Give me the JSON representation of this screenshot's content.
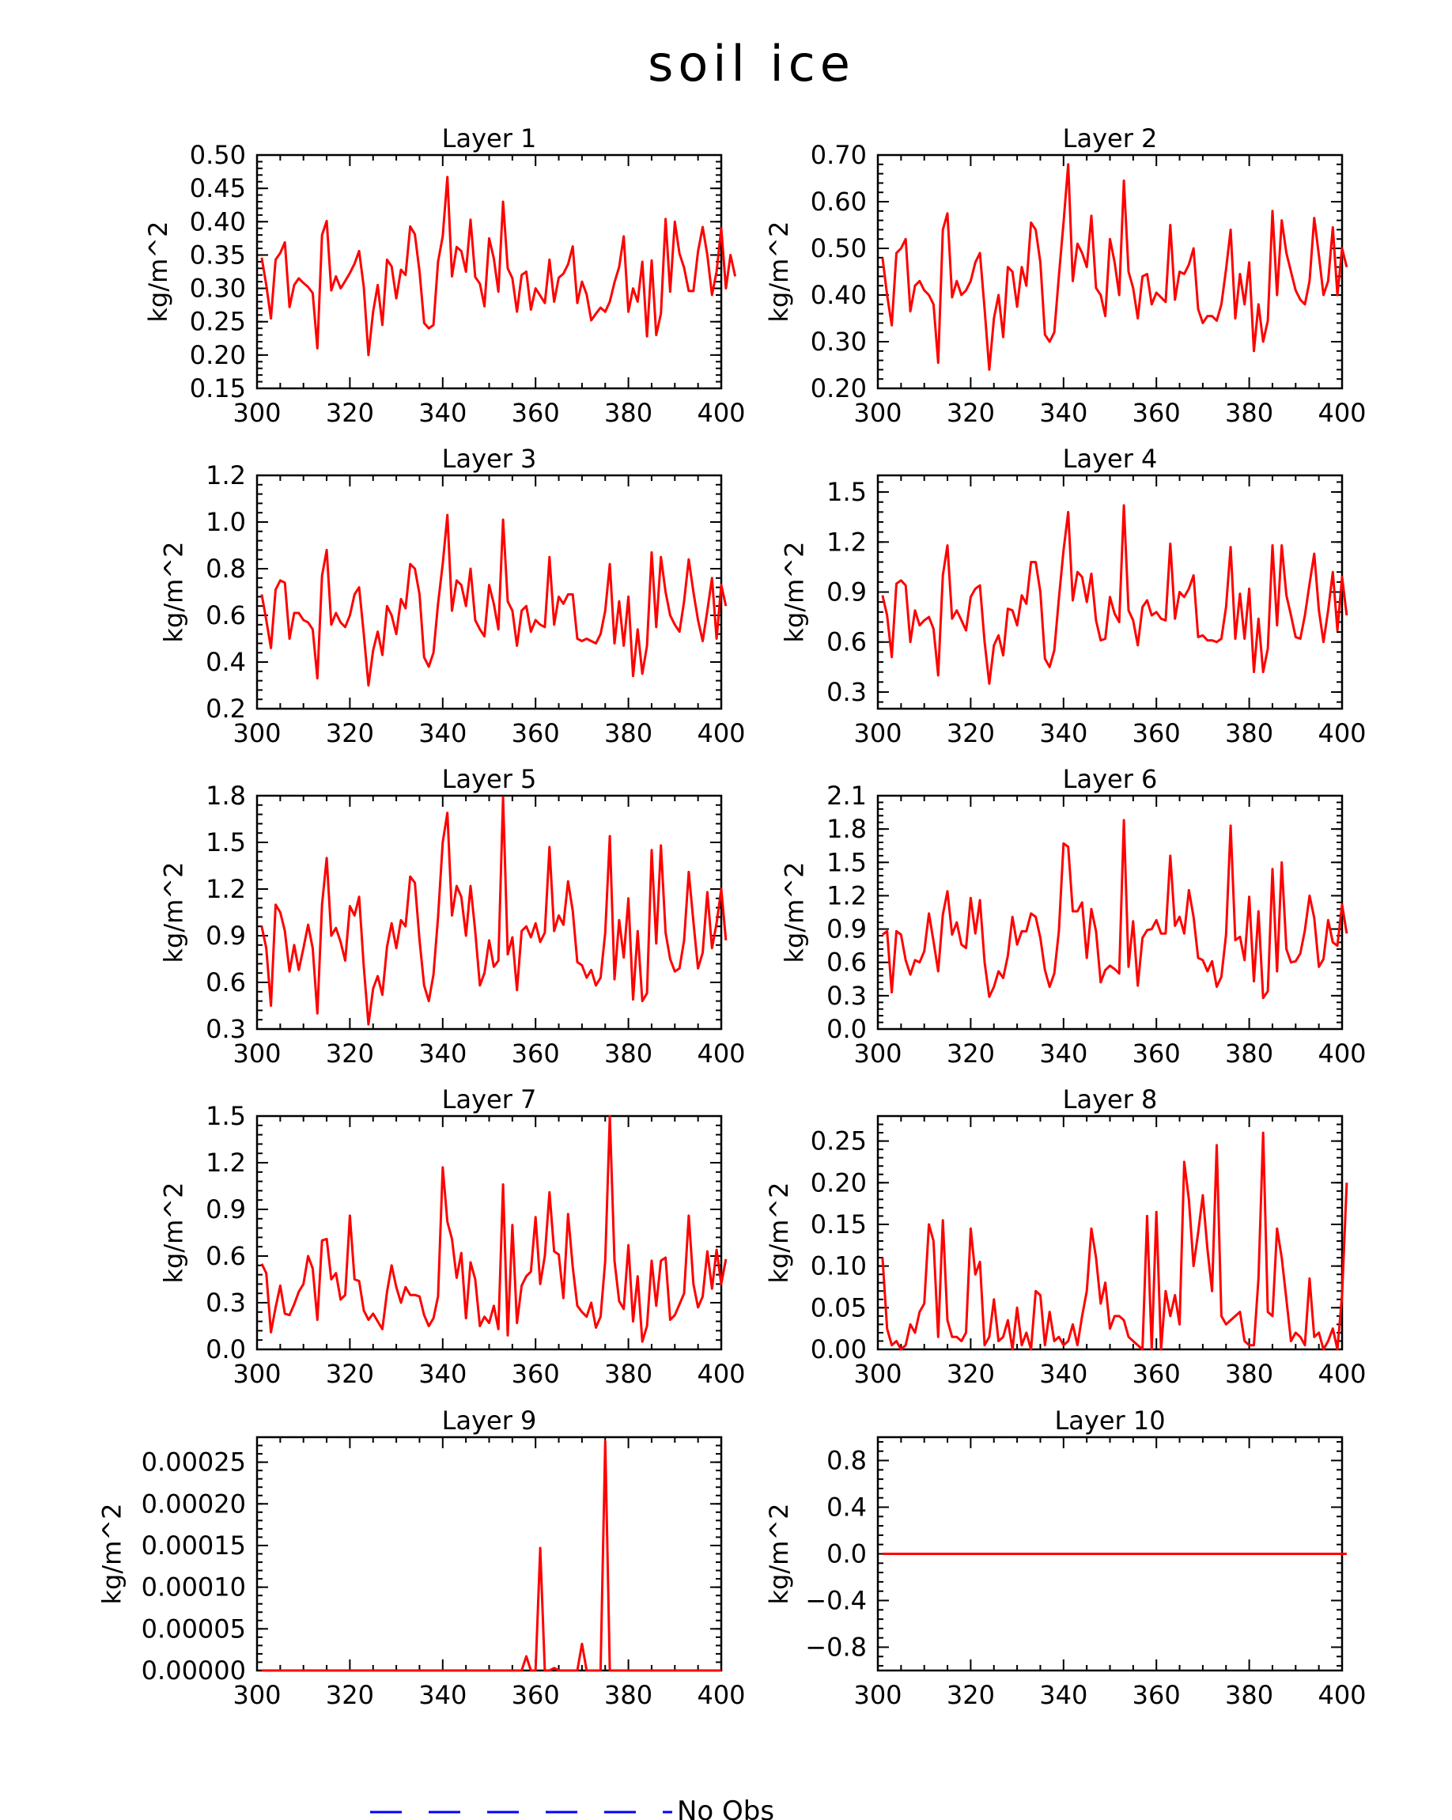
{
  "figure": {
    "title": "soil ice",
    "legend": {
      "label": "No Obs",
      "line_color": "#0000ff",
      "line_style": "dashed"
    },
    "line_color": "#ff0000"
  },
  "chart_data": [
    {
      "type": "line",
      "title": "Layer 1",
      "ylabel": "kg/m^2",
      "xlim": [
        300,
        400
      ],
      "xticks": [
        300,
        320,
        340,
        360,
        380,
        400
      ],
      "ylim": [
        0.15,
        0.5
      ],
      "yticks": [
        "0.15",
        "0.20",
        "0.25",
        "0.30",
        "0.35",
        "0.40",
        "0.45",
        "0.50"
      ],
      "x_start": 301,
      "values": [
        0.346,
        0.305,
        0.255,
        0.343,
        0.353,
        0.369,
        0.272,
        0.305,
        0.315,
        0.308,
        0.302,
        0.293,
        0.21,
        0.38,
        0.401,
        0.297,
        0.318,
        0.3,
        0.311,
        0.323,
        0.337,
        0.356,
        0.302,
        0.2,
        0.265,
        0.305,
        0.245,
        0.343,
        0.333,
        0.285,
        0.328,
        0.32,
        0.393,
        0.381,
        0.325,
        0.248,
        0.24,
        0.245,
        0.34,
        0.378,
        0.467,
        0.318,
        0.362,
        0.356,
        0.325,
        0.403,
        0.317,
        0.307,
        0.273,
        0.375,
        0.345,
        0.295,
        0.43,
        0.33,
        0.315,
        0.265,
        0.32,
        0.325,
        0.268,
        0.3,
        0.289,
        0.278,
        0.343,
        0.28,
        0.316,
        0.322,
        0.336,
        0.363,
        0.278,
        0.31,
        0.291,
        0.252,
        0.262,
        0.271,
        0.265,
        0.28,
        0.309,
        0.332,
        0.378,
        0.265,
        0.3,
        0.28,
        0.34,
        0.228,
        0.342,
        0.23,
        0.262,
        0.404,
        0.295,
        0.4,
        0.352,
        0.331,
        0.296,
        0.296,
        0.355,
        0.392,
        0.35,
        0.29,
        0.325,
        0.39,
        0.3,
        0.35,
        0.318
      ]
    },
    {
      "type": "line",
      "title": "Layer 2",
      "ylabel": "kg/m^2",
      "xlim": [
        300,
        400
      ],
      "xticks": [
        300,
        320,
        340,
        360,
        380,
        400
      ],
      "ylim": [
        0.2,
        0.7
      ],
      "yticks": [
        "0.20",
        "0.30",
        "0.40",
        "0.50",
        "0.60",
        "0.70"
      ],
      "x_start": 301,
      "values": [
        0.48,
        0.4,
        0.335,
        0.49,
        0.5,
        0.52,
        0.365,
        0.42,
        0.43,
        0.41,
        0.4,
        0.38,
        0.255,
        0.54,
        0.575,
        0.395,
        0.43,
        0.4,
        0.41,
        0.43,
        0.47,
        0.49,
        0.37,
        0.24,
        0.35,
        0.4,
        0.31,
        0.46,
        0.45,
        0.375,
        0.46,
        0.42,
        0.555,
        0.54,
        0.47,
        0.315,
        0.3,
        0.32,
        0.44,
        0.555,
        0.68,
        0.43,
        0.51,
        0.49,
        0.46,
        0.57,
        0.415,
        0.4,
        0.355,
        0.52,
        0.47,
        0.4,
        0.645,
        0.45,
        0.415,
        0.35,
        0.44,
        0.445,
        0.38,
        0.405,
        0.395,
        0.385,
        0.55,
        0.39,
        0.45,
        0.445,
        0.465,
        0.5,
        0.37,
        0.34,
        0.355,
        0.355,
        0.345,
        0.38,
        0.455,
        0.54,
        0.35,
        0.445,
        0.38,
        0.47,
        0.28,
        0.38,
        0.3,
        0.345,
        0.58,
        0.4,
        0.56,
        0.49,
        0.45,
        0.41,
        0.39,
        0.38,
        0.43,
        0.565,
        0.485,
        0.4,
        0.43,
        0.545,
        0.4,
        0.5,
        0.46
      ]
    },
    {
      "type": "line",
      "title": "Layer 3",
      "ylabel": "kg/m^2",
      "xlim": [
        300,
        400
      ],
      "xticks": [
        300,
        320,
        340,
        360,
        380,
        400
      ],
      "ylim": [
        0.2,
        1.2
      ],
      "yticks": [
        "0.2",
        "0.4",
        "0.6",
        "0.8",
        "1.0",
        "1.2"
      ],
      "x_start": 301,
      "values": [
        0.69,
        0.58,
        0.46,
        0.71,
        0.75,
        0.74,
        0.5,
        0.61,
        0.61,
        0.58,
        0.57,
        0.54,
        0.33,
        0.77,
        0.88,
        0.56,
        0.61,
        0.57,
        0.55,
        0.6,
        0.69,
        0.72,
        0.52,
        0.3,
        0.45,
        0.53,
        0.43,
        0.64,
        0.6,
        0.52,
        0.67,
        0.63,
        0.82,
        0.8,
        0.69,
        0.42,
        0.38,
        0.44,
        0.65,
        0.82,
        1.03,
        0.62,
        0.75,
        0.73,
        0.64,
        0.8,
        0.58,
        0.54,
        0.51,
        0.73,
        0.65,
        0.54,
        1.01,
        0.66,
        0.62,
        0.47,
        0.62,
        0.64,
        0.53,
        0.58,
        0.56,
        0.55,
        0.85,
        0.56,
        0.68,
        0.65,
        0.69,
        0.69,
        0.5,
        0.49,
        0.5,
        0.49,
        0.48,
        0.52,
        0.62,
        0.82,
        0.48,
        0.66,
        0.47,
        0.68,
        0.34,
        0.54,
        0.35,
        0.47,
        0.87,
        0.55,
        0.85,
        0.7,
        0.6,
        0.56,
        0.53,
        0.66,
        0.84,
        0.7,
        0.58,
        0.49,
        0.62,
        0.76,
        0.5,
        0.73,
        0.64
      ]
    },
    {
      "type": "line",
      "title": "Layer 4",
      "ylabel": "kg/m^2",
      "xlim": [
        300,
        400
      ],
      "xticks": [
        300,
        320,
        340,
        360,
        380,
        400
      ],
      "ylim": [
        0.2,
        1.6
      ],
      "yticks": [
        "0.3",
        "0.6",
        "0.9",
        "1.2",
        "1.5"
      ],
      "x_start": 301,
      "values": [
        0.88,
        0.76,
        0.51,
        0.95,
        0.97,
        0.94,
        0.6,
        0.79,
        0.7,
        0.73,
        0.75,
        0.68,
        0.4,
        1.0,
        1.18,
        0.74,
        0.79,
        0.73,
        0.67,
        0.87,
        0.92,
        0.94,
        0.6,
        0.35,
        0.58,
        0.64,
        0.52,
        0.8,
        0.79,
        0.7,
        0.88,
        0.83,
        1.08,
        1.08,
        0.9,
        0.5,
        0.45,
        0.55,
        0.86,
        1.15,
        1.38,
        0.85,
        1.02,
        0.99,
        0.84,
        1.01,
        0.73,
        0.61,
        0.62,
        0.87,
        0.77,
        0.72,
        1.42,
        0.79,
        0.73,
        0.58,
        0.81,
        0.85,
        0.76,
        0.78,
        0.74,
        0.73,
        1.19,
        0.74,
        0.9,
        0.87,
        0.92,
        1.0,
        0.63,
        0.64,
        0.61,
        0.61,
        0.6,
        0.62,
        0.81,
        1.17,
        0.62,
        0.89,
        0.62,
        0.92,
        0.42,
        0.74,
        0.42,
        0.56,
        1.18,
        0.7,
        1.18,
        0.88,
        0.76,
        0.63,
        0.62,
        0.76,
        0.95,
        1.13,
        0.79,
        0.6,
        0.79,
        1.02,
        0.67,
        0.99,
        0.76
      ]
    },
    {
      "type": "line",
      "title": "Layer 5",
      "ylabel": "kg/m^2",
      "xlim": [
        300,
        400
      ],
      "xticks": [
        300,
        320,
        340,
        360,
        380,
        400
      ],
      "ylim": [
        0.3,
        1.8
      ],
      "yticks": [
        "0.3",
        "0.6",
        "0.9",
        "1.2",
        "1.5",
        "1.8"
      ],
      "x_start": 301,
      "values": [
        0.96,
        0.82,
        0.45,
        1.1,
        1.05,
        0.93,
        0.67,
        0.84,
        0.68,
        0.82,
        0.97,
        0.82,
        0.4,
        1.1,
        1.4,
        0.9,
        0.95,
        0.86,
        0.74,
        1.09,
        1.03,
        1.15,
        0.7,
        0.33,
        0.56,
        0.64,
        0.52,
        0.83,
        0.98,
        0.82,
        1.0,
        0.96,
        1.28,
        1.24,
        0.87,
        0.58,
        0.48,
        0.65,
        1.02,
        1.5,
        1.69,
        1.03,
        1.22,
        1.15,
        0.9,
        1.22,
        0.93,
        0.58,
        0.66,
        0.87,
        0.7,
        0.74,
        1.79,
        0.78,
        0.89,
        0.55,
        0.93,
        0.96,
        0.89,
        0.98,
        0.86,
        0.92,
        1.47,
        0.93,
        1.03,
        0.97,
        1.25,
        1.06,
        0.73,
        0.71,
        0.63,
        0.68,
        0.58,
        0.63,
        0.92,
        1.54,
        0.62,
        1.0,
        0.76,
        1.14,
        0.49,
        0.93,
        0.48,
        0.53,
        1.45,
        0.85,
        1.48,
        0.92,
        0.75,
        0.67,
        0.69,
        0.87,
        1.31,
        0.99,
        0.69,
        0.79,
        1.18,
        0.82,
        0.98,
        1.2,
        0.87
      ]
    },
    {
      "type": "line",
      "title": "Layer 6",
      "ylabel": "kg/m^2",
      "xlim": [
        300,
        400
      ],
      "xticks": [
        300,
        320,
        340,
        360,
        380,
        400
      ],
      "ylim": [
        0.0,
        2.1
      ],
      "yticks": [
        "0.0",
        "0.3",
        "0.6",
        "0.9",
        "1.2",
        "1.5",
        "1.8",
        "2.1"
      ],
      "x_start": 301,
      "values": [
        0.85,
        0.88,
        0.33,
        0.88,
        0.85,
        0.62,
        0.49,
        0.62,
        0.6,
        0.7,
        1.04,
        0.79,
        0.52,
        1.03,
        1.24,
        0.85,
        0.96,
        0.76,
        0.73,
        1.18,
        0.86,
        1.16,
        0.6,
        0.29,
        0.38,
        0.52,
        0.46,
        0.66,
        1.01,
        0.76,
        0.88,
        0.88,
        1.04,
        1.01,
        0.82,
        0.53,
        0.38,
        0.5,
        0.88,
        1.67,
        1.64,
        1.06,
        1.06,
        1.14,
        0.64,
        1.08,
        0.88,
        0.42,
        0.53,
        0.57,
        0.54,
        0.5,
        1.88,
        0.56,
        0.97,
        0.39,
        0.82,
        0.89,
        0.9,
        0.98,
        0.86,
        0.86,
        1.56,
        0.93,
        1.01,
        0.86,
        1.25,
        1.01,
        0.64,
        0.62,
        0.52,
        0.61,
        0.38,
        0.47,
        0.85,
        1.83,
        0.8,
        0.83,
        0.62,
        1.19,
        0.43,
        1.06,
        0.28,
        0.34,
        1.44,
        0.52,
        1.5,
        0.72,
        0.6,
        0.61,
        0.68,
        0.89,
        1.2,
        1.0,
        0.56,
        0.63,
        0.98,
        0.78,
        0.75,
        1.12,
        0.86
      ]
    },
    {
      "type": "line",
      "title": "Layer 7",
      "ylabel": "kg/m^2",
      "xlim": [
        300,
        400
      ],
      "xticks": [
        300,
        320,
        340,
        360,
        380,
        400
      ],
      "ylim": [
        0.0,
        1.5
      ],
      "yticks": [
        "0.0",
        "0.3",
        "0.6",
        "0.9",
        "1.2",
        "1.5"
      ],
      "x_start": 301,
      "values": [
        0.55,
        0.49,
        0.11,
        0.27,
        0.41,
        0.23,
        0.22,
        0.29,
        0.37,
        0.42,
        0.6,
        0.52,
        0.19,
        0.7,
        0.71,
        0.45,
        0.49,
        0.32,
        0.35,
        0.86,
        0.45,
        0.44,
        0.25,
        0.19,
        0.23,
        0.18,
        0.13,
        0.37,
        0.54,
        0.4,
        0.3,
        0.4,
        0.35,
        0.35,
        0.34,
        0.22,
        0.15,
        0.2,
        0.34,
        1.17,
        0.82,
        0.71,
        0.46,
        0.62,
        0.2,
        0.56,
        0.45,
        0.15,
        0.21,
        0.17,
        0.28,
        0.13,
        1.06,
        0.09,
        0.8,
        0.17,
        0.41,
        0.47,
        0.5,
        0.85,
        0.42,
        0.6,
        1.01,
        0.63,
        0.61,
        0.33,
        0.87,
        0.53,
        0.28,
        0.24,
        0.21,
        0.3,
        0.14,
        0.21,
        0.57,
        1.5,
        0.57,
        0.31,
        0.26,
        0.67,
        0.18,
        0.47,
        0.05,
        0.15,
        0.57,
        0.28,
        0.57,
        0.59,
        0.19,
        0.22,
        0.29,
        0.36,
        0.86,
        0.42,
        0.27,
        0.34,
        0.63,
        0.39,
        0.64,
        0.42,
        0.58
      ]
    },
    {
      "type": "line",
      "title": "Layer 8",
      "ylabel": "kg/m^2",
      "xlim": [
        300,
        400
      ],
      "xticks": [
        300,
        320,
        340,
        360,
        380,
        400
      ],
      "ylim": [
        0.0,
        0.28
      ],
      "yticks": [
        "0.00",
        "0.05",
        "0.10",
        "0.15",
        "0.20",
        "0.25"
      ],
      "x_start": 301,
      "values": [
        0.11,
        0.025,
        0.005,
        0.01,
        0.0,
        0.005,
        0.03,
        0.02,
        0.045,
        0.055,
        0.15,
        0.13,
        0.015,
        0.155,
        0.035,
        0.015,
        0.015,
        0.01,
        0.02,
        0.145,
        0.09,
        0.105,
        0.005,
        0.015,
        0.06,
        0.01,
        0.015,
        0.035,
        0.0,
        0.05,
        0.005,
        0.02,
        0.0,
        0.07,
        0.065,
        0.005,
        0.045,
        0.01,
        0.015,
        0.005,
        0.01,
        0.03,
        0.005,
        0.04,
        0.07,
        0.145,
        0.11,
        0.055,
        0.08,
        0.025,
        0.04,
        0.04,
        0.035,
        0.015,
        0.01,
        0.005,
        0.0,
        0.16,
        0.0,
        0.165,
        0.0,
        0.07,
        0.04,
        0.065,
        0.03,
        0.225,
        0.18,
        0.1,
        0.14,
        0.185,
        0.12,
        0.07,
        0.245,
        0.04,
        0.03,
        0.035,
        0.04,
        0.045,
        0.01,
        0.005,
        0.005,
        0.085,
        0.26,
        0.045,
        0.04,
        0.145,
        0.11,
        0.06,
        0.01,
        0.02,
        0.015,
        0.005,
        0.085,
        0.015,
        0.02,
        0.0,
        0.01,
        0.025,
        0.0,
        0.065,
        0.2
      ]
    },
    {
      "type": "line",
      "title": "Layer 9",
      "ylabel": "kg/m^2",
      "xlim": [
        300,
        400
      ],
      "xticks": [
        300,
        320,
        340,
        360,
        380,
        400
      ],
      "ylim": [
        0.0,
        0.00028
      ],
      "yticks": [
        "0.00000",
        "0.00005",
        "0.00010",
        "0.00015",
        "0.00020",
        "0.00025"
      ],
      "x_start": 301,
      "values": [
        0,
        0,
        0,
        0,
        0,
        0,
        0,
        0,
        0,
        0,
        0,
        0,
        0,
        0,
        0,
        0,
        0,
        0,
        0,
        0,
        0,
        0,
        0,
        0,
        0,
        0,
        0,
        0,
        0,
        0,
        0,
        0,
        0,
        0,
        0,
        0,
        0,
        0,
        0,
        0,
        0,
        0,
        0,
        0,
        0,
        0,
        0,
        0,
        0,
        0,
        0,
        0,
        0,
        0,
        0,
        0,
        0,
        1.7e-05,
        0,
        0,
        0.000147,
        0,
        0,
        3e-06,
        0,
        0,
        0,
        0,
        0,
        3.2e-05,
        0,
        0,
        0,
        0,
        0.000275,
        0,
        0,
        0,
        0,
        0,
        0,
        0,
        0,
        0,
        0,
        0,
        0,
        0,
        0,
        0,
        0,
        0,
        0,
        0,
        0,
        0,
        0,
        0,
        0,
        0
      ]
    },
    {
      "type": "line",
      "title": "Layer 10",
      "ylabel": "kg/m^2",
      "xlim": [
        300,
        400
      ],
      "xticks": [
        300,
        320,
        340,
        360,
        380,
        400
      ],
      "ylim": [
        -1.0,
        1.0
      ],
      "yticks": [
        "−0.8",
        "−0.4",
        "0.0",
        "0.4",
        "0.8"
      ],
      "x_start": 301,
      "values": [
        0,
        0,
        0,
        0,
        0,
        0,
        0,
        0,
        0,
        0,
        0,
        0,
        0,
        0,
        0,
        0,
        0,
        0,
        0,
        0,
        0,
        0,
        0,
        0,
        0,
        0,
        0,
        0,
        0,
        0,
        0,
        0,
        0,
        0,
        0,
        0,
        0,
        0,
        0,
        0,
        0,
        0,
        0,
        0,
        0,
        0,
        0,
        0,
        0,
        0,
        0,
        0,
        0,
        0,
        0,
        0,
        0,
        0,
        0,
        0,
        0,
        0,
        0,
        0,
        0,
        0,
        0,
        0,
        0,
        0,
        0,
        0,
        0,
        0,
        0,
        0,
        0,
        0,
        0,
        0,
        0,
        0,
        0,
        0,
        0,
        0,
        0,
        0,
        0,
        0,
        0,
        0,
        0,
        0,
        0,
        0,
        0,
        0,
        0,
        0,
        0
      ]
    }
  ]
}
